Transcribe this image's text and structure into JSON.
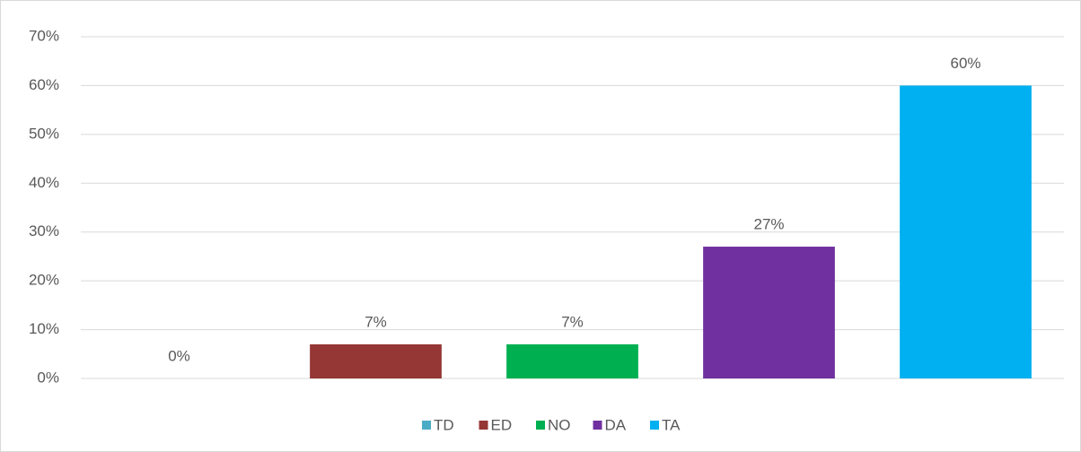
{
  "chart_data": {
    "type": "bar",
    "series": [
      {
        "name": "TD",
        "color": "#4bacc6",
        "values": [
          0
        ],
        "value_labels": [
          "0%"
        ]
      },
      {
        "name": "ED",
        "color": "#953735",
        "values": [
          7
        ],
        "value_labels": [
          "7%"
        ]
      },
      {
        "name": "NO",
        "color": "#00b050",
        "values": [
          7
        ],
        "value_labels": [
          "7%"
        ]
      },
      {
        "name": "DA",
        "color": "#7030a0",
        "values": [
          27
        ],
        "value_labels": [
          "27%"
        ]
      },
      {
        "name": "TA",
        "color": "#00b0f0",
        "values": [
          60
        ],
        "value_labels": [
          "60%"
        ]
      }
    ],
    "ylim": [
      0,
      70
    ],
    "yticks": [
      {
        "value": 0,
        "label": "0%"
      },
      {
        "value": 10,
        "label": "10%"
      },
      {
        "value": 20,
        "label": "20%"
      },
      {
        "value": 30,
        "label": "30%"
      },
      {
        "value": 40,
        "label": "40%"
      },
      {
        "value": 50,
        "label": "50%"
      },
      {
        "value": 60,
        "label": "60%"
      },
      {
        "value": 70,
        "label": "70%"
      }
    ],
    "grid": true,
    "legend": "bottom"
  }
}
